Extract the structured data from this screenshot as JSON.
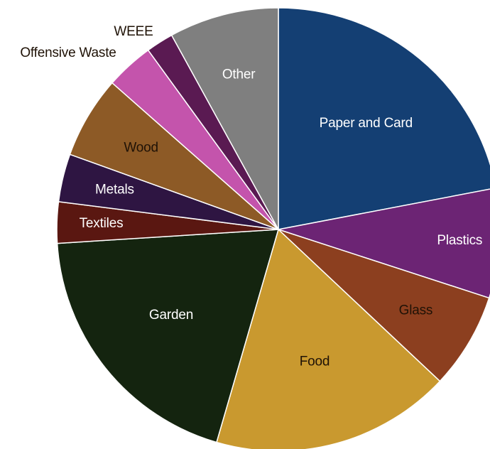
{
  "chart_data": {
    "type": "pie",
    "title": "",
    "slices": [
      {
        "label": "Paper and Card",
        "value": 22.0,
        "color": "#143f73",
        "label_color": "#ffffff"
      },
      {
        "label": "Plastics",
        "value": 8.0,
        "color": "#6c2474",
        "label_color": "#ffffff"
      },
      {
        "label": "Glass",
        "value": 7.0,
        "color": "#8c3f1f",
        "label_color": "#1f1206"
      },
      {
        "label": "Food",
        "value": 17.5,
        "color": "#c9992f",
        "label_color": "#1f1206"
      },
      {
        "label": "Garden",
        "value": 19.5,
        "color": "#14240f",
        "label_color": "#ffffff"
      },
      {
        "label": "Textiles",
        "value": 3.0,
        "color": "#5a1711",
        "label_color": "#ffffff"
      },
      {
        "label": "Metals",
        "value": 3.5,
        "color": "#2e1542",
        "label_color": "#ffffff"
      },
      {
        "label": "Wood",
        "value": 6.0,
        "color": "#8d5a26",
        "label_color": "#1f1206"
      },
      {
        "label": "Offensive Waste",
        "value": 3.5,
        "color": "#c454ac",
        "label_color": "#1f1206"
      },
      {
        "label": "WEEE",
        "value": 2.0,
        "color": "#5a1a52",
        "label_color": "#1f1206"
      },
      {
        "label": "Other",
        "value": 8.0,
        "color": "#7f7f7f",
        "label_color": "#ffffff"
      }
    ]
  }
}
